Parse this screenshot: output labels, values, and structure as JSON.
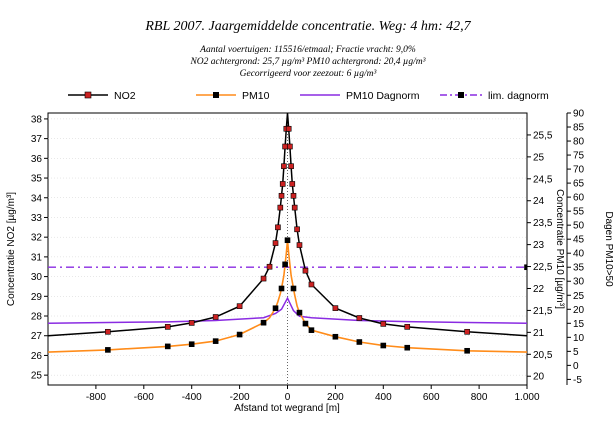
{
  "title": "RBL 2007. Jaargemiddelde concentratie. Weg: 4 hm: 42,7",
  "subtitle_lines": [
    "Aantal voertuigen: 115516/etmaal; Fractie vracht: 9,0%",
    "NO2 achtergrond: 25,7 µg/m³ PM10 achtergrond: 20,4 µg/m³",
    "Gecorrigeerd voor zeezout: 6 µg/m³"
  ],
  "legend": [
    {
      "label": "NO2",
      "color": "#000000",
      "marker_color": "#cc2222",
      "style": "solid",
      "marker": true
    },
    {
      "label": "PM10",
      "color": "#ff8c1a",
      "marker_color": "#000000",
      "style": "solid",
      "marker": true
    },
    {
      "label": "PM10 Dagnorm",
      "color": "#8a2be2",
      "style": "solid",
      "marker": false
    },
    {
      "label": "lim. dagnorm",
      "color": "#8a2be2",
      "marker_color": "#000000",
      "style": "dashdot",
      "marker": true
    }
  ],
  "chart_data": {
    "type": "line",
    "xlabel": "Afstand tot wegrand [m]",
    "ylabel_left": "Concentratie NO2 [µg/m³]",
    "ylabel_right1": "Concentratie PM10 [µg/m³]",
    "ylabel_right2": "Dagen PM10>50",
    "xlim": [
      -1000,
      1000
    ],
    "ylim_left": [
      24.5,
      38.3
    ],
    "ylim_right1": [
      19.8,
      26.0
    ],
    "ylim_right2": [
      -7,
      90
    ],
    "x_ticks": [
      "-800",
      "-600",
      "-400",
      "-200",
      "0",
      "200",
      "400",
      "600",
      "800",
      "1.000"
    ],
    "x_tick_values": [
      -800,
      -600,
      -400,
      -200,
      0,
      200,
      400,
      600,
      800,
      1000
    ],
    "y_left_ticks": [
      "25",
      "26",
      "27",
      "28",
      "29",
      "30",
      "31",
      "32",
      "33",
      "34",
      "35",
      "36",
      "37",
      "38"
    ],
    "y_left_tick_values": [
      25,
      26,
      27,
      28,
      29,
      30,
      31,
      32,
      33,
      34,
      35,
      36,
      37,
      38
    ],
    "y_right1_ticks": [
      "20",
      "20,5",
      "21",
      "21,5",
      "22",
      "22,5",
      "23",
      "23,5",
      "24",
      "24,5",
      "25",
      "25,5"
    ],
    "y_right1_tick_values": [
      20,
      20.5,
      21,
      21.5,
      22,
      22.5,
      23,
      23.5,
      24,
      24.5,
      25,
      25.5
    ],
    "y_right2_ticks": [
      "-5",
      "0",
      "5",
      "10",
      "15",
      "20",
      "25",
      "30",
      "35",
      "40",
      "45",
      "50",
      "55",
      "60",
      "65",
      "70",
      "75",
      "80",
      "85",
      "90"
    ],
    "y_right2_tick_values": [
      -5,
      0,
      5,
      10,
      15,
      20,
      25,
      30,
      35,
      40,
      45,
      50,
      55,
      60,
      65,
      70,
      75,
      80,
      85,
      90
    ],
    "series": [
      {
        "name": "NO2",
        "axis": "left",
        "x": [
          -1000,
          -750,
          -500,
          -400,
          -300,
          -200,
          -100,
          -75,
          -50,
          -40,
          -30,
          -25,
          -20,
          -15,
          -10,
          -5,
          0,
          5,
          10,
          15,
          20,
          25,
          30,
          40,
          50,
          75,
          100,
          200,
          300,
          400,
          500,
          750,
          1000
        ],
        "y": [
          27.0,
          27.2,
          27.45,
          27.65,
          27.95,
          28.5,
          29.9,
          30.5,
          31.7,
          32.5,
          33.5,
          34.1,
          34.7,
          35.6,
          36.6,
          37.5,
          38.3,
          37.5,
          36.6,
          35.6,
          34.7,
          34.1,
          33.5,
          32.4,
          31.6,
          30.3,
          29.6,
          28.4,
          27.9,
          27.6,
          27.45,
          27.2,
          27.0
        ],
        "markers": [
          -750,
          -500,
          -400,
          -300,
          -200,
          -100,
          -75,
          -50,
          -40,
          -30,
          -25,
          -20,
          -15,
          -10,
          -5,
          5,
          10,
          15,
          20,
          25,
          30,
          40,
          50,
          75,
          100,
          200,
          300,
          400,
          500,
          750
        ]
      },
      {
        "name": "PM10",
        "axis": "right1",
        "x": [
          -1000,
          -750,
          -500,
          -400,
          -300,
          -200,
          -100,
          -75,
          -50,
          -40,
          -30,
          -25,
          -20,
          -15,
          -10,
          -5,
          0,
          5,
          10,
          15,
          20,
          25,
          30,
          40,
          50,
          75,
          100,
          200,
          300,
          400,
          500,
          750,
          1000
        ],
        "y": [
          20.55,
          20.6,
          20.68,
          20.73,
          20.8,
          20.95,
          21.22,
          21.33,
          21.55,
          21.7,
          21.88,
          22.0,
          22.15,
          22.3,
          22.55,
          22.8,
          23.1,
          22.8,
          22.55,
          22.3,
          22.15,
          22.0,
          21.85,
          21.6,
          21.45,
          21.2,
          21.05,
          20.9,
          20.78,
          20.7,
          20.65,
          20.58,
          20.55
        ],
        "markers": [
          -750,
          -500,
          -400,
          -300,
          -200,
          -100,
          -50,
          -25,
          -10,
          0,
          25,
          50,
          75,
          100,
          200,
          300,
          400,
          500,
          750
        ]
      },
      {
        "name": "PM10 Dagnorm",
        "axis": "right2",
        "x": [
          -1000,
          -750,
          -500,
          -300,
          -100,
          -50,
          -25,
          0,
          25,
          50,
          100,
          300,
          500,
          750,
          1000
        ],
        "y": [
          15,
          15.3,
          15.5,
          16,
          17,
          18.5,
          20,
          24,
          19.5,
          17.5,
          17,
          16,
          15.6,
          15.3,
          15
        ]
      },
      {
        "name": "lim. dagnorm",
        "axis": "right2",
        "x": [
          -1000,
          1000
        ],
        "y": [
          35,
          35
        ],
        "markers": [
          1000
        ]
      }
    ]
  }
}
